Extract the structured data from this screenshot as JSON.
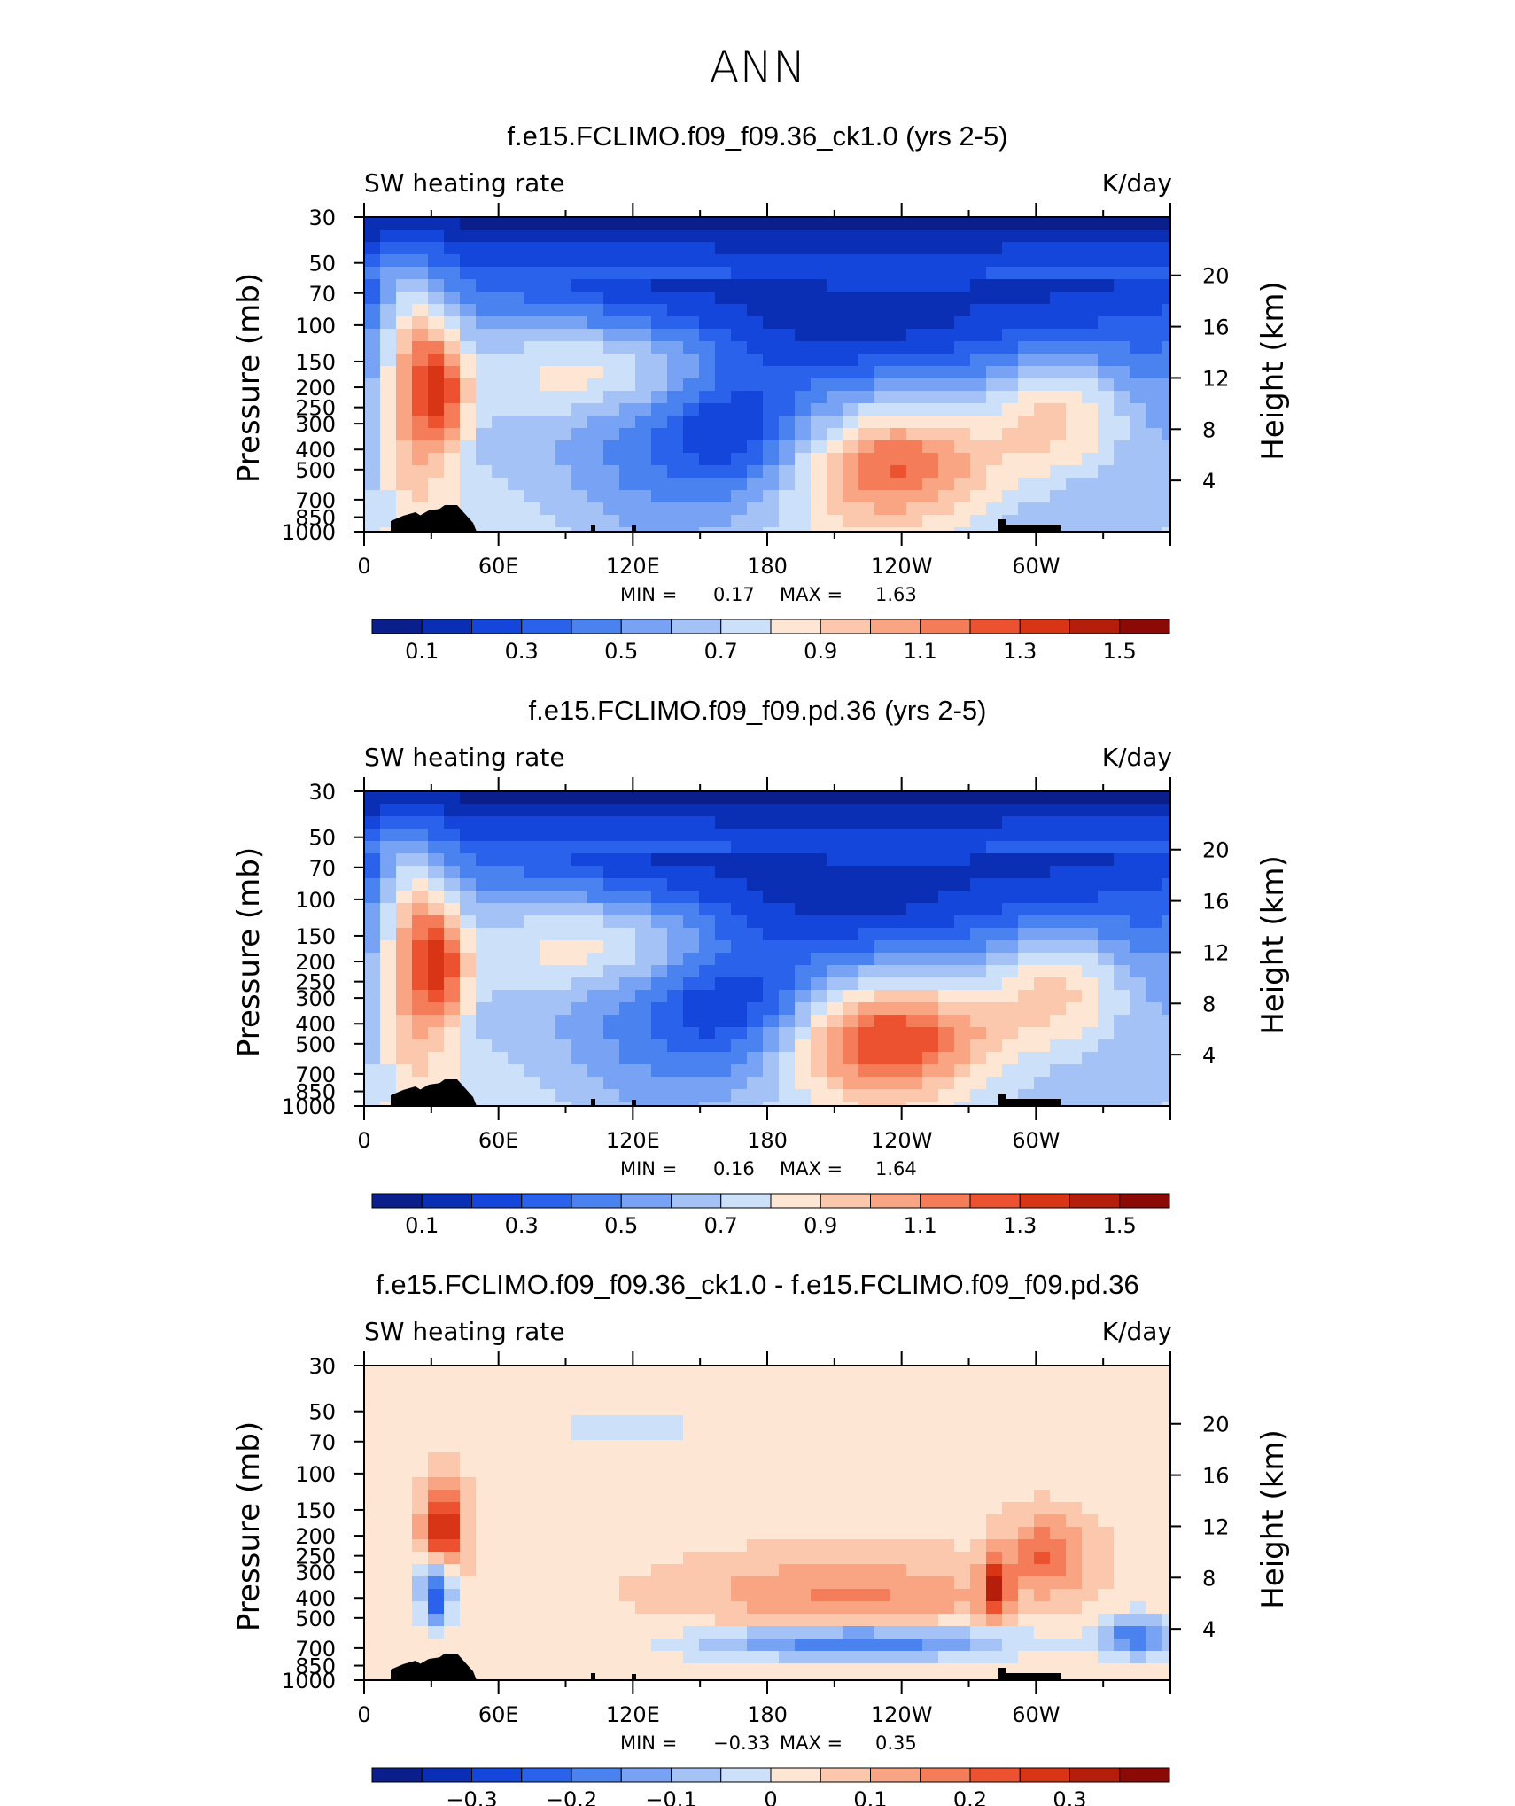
{
  "figure": {
    "title": "ANN"
  },
  "chart_data": [
    {
      "type": "heatmap",
      "title": "f.e15.FCLIMO.f09_f09.36_ck1.0 (yrs 2-5)",
      "subtitle_left": "SW heating rate",
      "subtitle_right": "K/day",
      "xlabel": "",
      "ylabel": "Pressure (mb)",
      "ylabel_right": "Height (km)",
      "x_ticks": [
        "0",
        "60E",
        "120E",
        "180",
        "120W",
        "60W"
      ],
      "x_tick_values": [
        0,
        60,
        120,
        180,
        240,
        300
      ],
      "xlim": [
        0,
        360
      ],
      "y_ticks": [
        "30",
        "50",
        "70",
        "100",
        "150",
        "200",
        "250",
        "300",
        "400",
        "500",
        "700",
        "850",
        "1000"
      ],
      "y_tick_values": [
        30,
        50,
        70,
        100,
        150,
        200,
        250,
        300,
        400,
        500,
        700,
        850,
        1000
      ],
      "ylim": [
        1000,
        30
      ],
      "y_scale": "log",
      "height_ticks": [
        "20",
        "16",
        "12",
        "8",
        "4"
      ],
      "height_tick_values": [
        20,
        16,
        12,
        8,
        4
      ],
      "min_text": "MIN =",
      "min_value": "0.17",
      "max_text": "MAX =",
      "max_value": "1.63",
      "colorbar": {
        "labels": [
          "0.1",
          "0.3",
          "0.5",
          "0.7",
          "0.9",
          "1.1",
          "1.3",
          "1.5"
        ],
        "levels": [
          0.0,
          0.1,
          0.2,
          0.3,
          0.4,
          0.5,
          0.6,
          0.7,
          0.8,
          0.9,
          1.0,
          1.1,
          1.2,
          1.3,
          1.4,
          1.5,
          1.6
        ]
      }
    },
    {
      "type": "heatmap",
      "title": "f.e15.FCLIMO.f09_f09.pd.36 (yrs 2-5)",
      "subtitle_left": "SW heating rate",
      "subtitle_right": "K/day",
      "xlabel": "",
      "ylabel": "Pressure (mb)",
      "ylabel_right": "Height (km)",
      "x_ticks": [
        "0",
        "60E",
        "120E",
        "180",
        "120W",
        "60W"
      ],
      "x_tick_values": [
        0,
        60,
        120,
        180,
        240,
        300
      ],
      "xlim": [
        0,
        360
      ],
      "y_ticks": [
        "30",
        "50",
        "70",
        "100",
        "150",
        "200",
        "250",
        "300",
        "400",
        "500",
        "700",
        "850",
        "1000"
      ],
      "y_tick_values": [
        30,
        50,
        70,
        100,
        150,
        200,
        250,
        300,
        400,
        500,
        700,
        850,
        1000
      ],
      "ylim": [
        1000,
        30
      ],
      "y_scale": "log",
      "height_ticks": [
        "20",
        "16",
        "12",
        "8",
        "4"
      ],
      "height_tick_values": [
        20,
        16,
        12,
        8,
        4
      ],
      "min_text": "MIN =",
      "min_value": "0.16",
      "max_text": "MAX =",
      "max_value": "1.64",
      "colorbar": {
        "labels": [
          "0.1",
          "0.3",
          "0.5",
          "0.7",
          "0.9",
          "1.1",
          "1.3",
          "1.5"
        ],
        "levels": [
          0.0,
          0.1,
          0.2,
          0.3,
          0.4,
          0.5,
          0.6,
          0.7,
          0.8,
          0.9,
          1.0,
          1.1,
          1.2,
          1.3,
          1.4,
          1.5,
          1.6
        ]
      }
    },
    {
      "type": "heatmap",
      "title": "f.e15.FCLIMO.f09_f09.36_ck1.0 - f.e15.FCLIMO.f09_f09.pd.36",
      "subtitle_left": "SW heating rate",
      "subtitle_right": "K/day",
      "xlabel": "",
      "ylabel": "Pressure (mb)",
      "ylabel_right": "Height (km)",
      "x_ticks": [
        "0",
        "60E",
        "120E",
        "180",
        "120W",
        "60W"
      ],
      "x_tick_values": [
        0,
        60,
        120,
        180,
        240,
        300
      ],
      "xlim": [
        0,
        360
      ],
      "y_ticks": [
        "30",
        "50",
        "70",
        "100",
        "150",
        "200",
        "250",
        "300",
        "400",
        "500",
        "700",
        "850",
        "1000"
      ],
      "y_tick_values": [
        30,
        50,
        70,
        100,
        150,
        200,
        250,
        300,
        400,
        500,
        700,
        850,
        1000
      ],
      "ylim": [
        1000,
        30
      ],
      "y_scale": "log",
      "height_ticks": [
        "20",
        "16",
        "12",
        "8",
        "4"
      ],
      "height_tick_values": [
        20,
        16,
        12,
        8,
        4
      ],
      "min_text": "MIN =",
      "min_value": "−0.33",
      "max_text": "MAX =",
      "max_value": "0.35",
      "colorbar": {
        "labels": [
          "−0.3",
          "−0.2",
          "−0.1",
          "0",
          "0.1",
          "0.2",
          "0.3"
        ],
        "levels": [
          -0.4,
          -0.35,
          -0.3,
          -0.25,
          -0.2,
          -0.15,
          -0.1,
          -0.05,
          0.0,
          0.05,
          0.1,
          0.15,
          0.2,
          0.25,
          0.3,
          0.35,
          0.4
        ]
      }
    }
  ],
  "palette": [
    "#0a1f8c",
    "#0a2fb4",
    "#1446dc",
    "#2a62ec",
    "#4a82f0",
    "#78a2f4",
    "#a4c2f6",
    "#cde0fa",
    "#fde6d4",
    "#fcc8ad",
    "#f9a583",
    "#f47c58",
    "#ec5230",
    "#d83416",
    "#b41e0a",
    "#8c0a06"
  ]
}
